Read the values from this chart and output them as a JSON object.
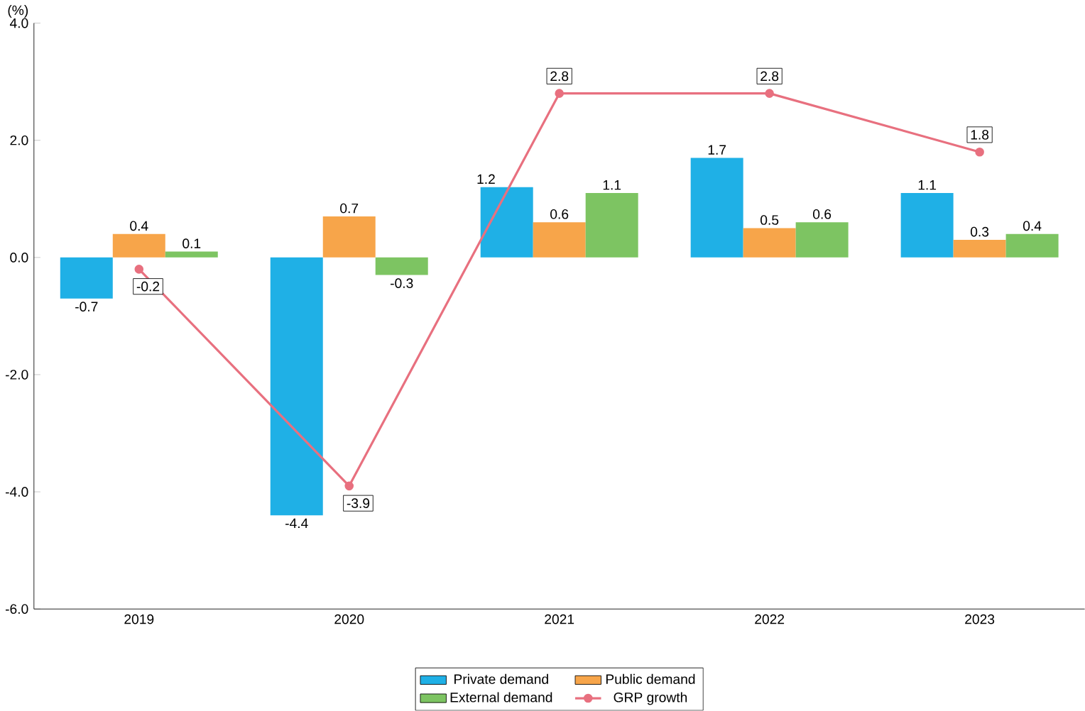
{
  "chart_data": {
    "type": "bar",
    "ylabel": "(%)",
    "categories": [
      "2019",
      "2020",
      "2021",
      "2022",
      "2023"
    ],
    "series": [
      {
        "name": "Private demand",
        "color": "#1fb0e6",
        "values": [
          -0.7,
          -4.4,
          1.2,
          1.7,
          1.1
        ]
      },
      {
        "name": "Public demand",
        "color": "#f7a54a",
        "values": [
          0.4,
          0.7,
          0.6,
          0.5,
          0.3
        ]
      },
      {
        "name": "External demand",
        "color": "#7dc462",
        "values": [
          0.1,
          -0.3,
          1.1,
          0.6,
          0.4
        ]
      },
      {
        "name": "GRP growth",
        "color": "#e8707f",
        "type": "line",
        "marker": "circle",
        "values": [
          -0.2,
          -3.9,
          2.8,
          2.8,
          1.8
        ]
      }
    ],
    "ylim": [
      -6,
      4
    ],
    "yticks": [
      {
        "value": -6,
        "label": "-6.0"
      },
      {
        "value": -4,
        "label": "-4.0"
      },
      {
        "value": -2,
        "label": "-2.0"
      },
      {
        "value": 0,
        "label": "0.0"
      },
      {
        "value": 2,
        "label": "2.0"
      },
      {
        "value": 4,
        "label": "4.0"
      }
    ],
    "data_labels": true,
    "legend": "bottom",
    "grid": false
  }
}
